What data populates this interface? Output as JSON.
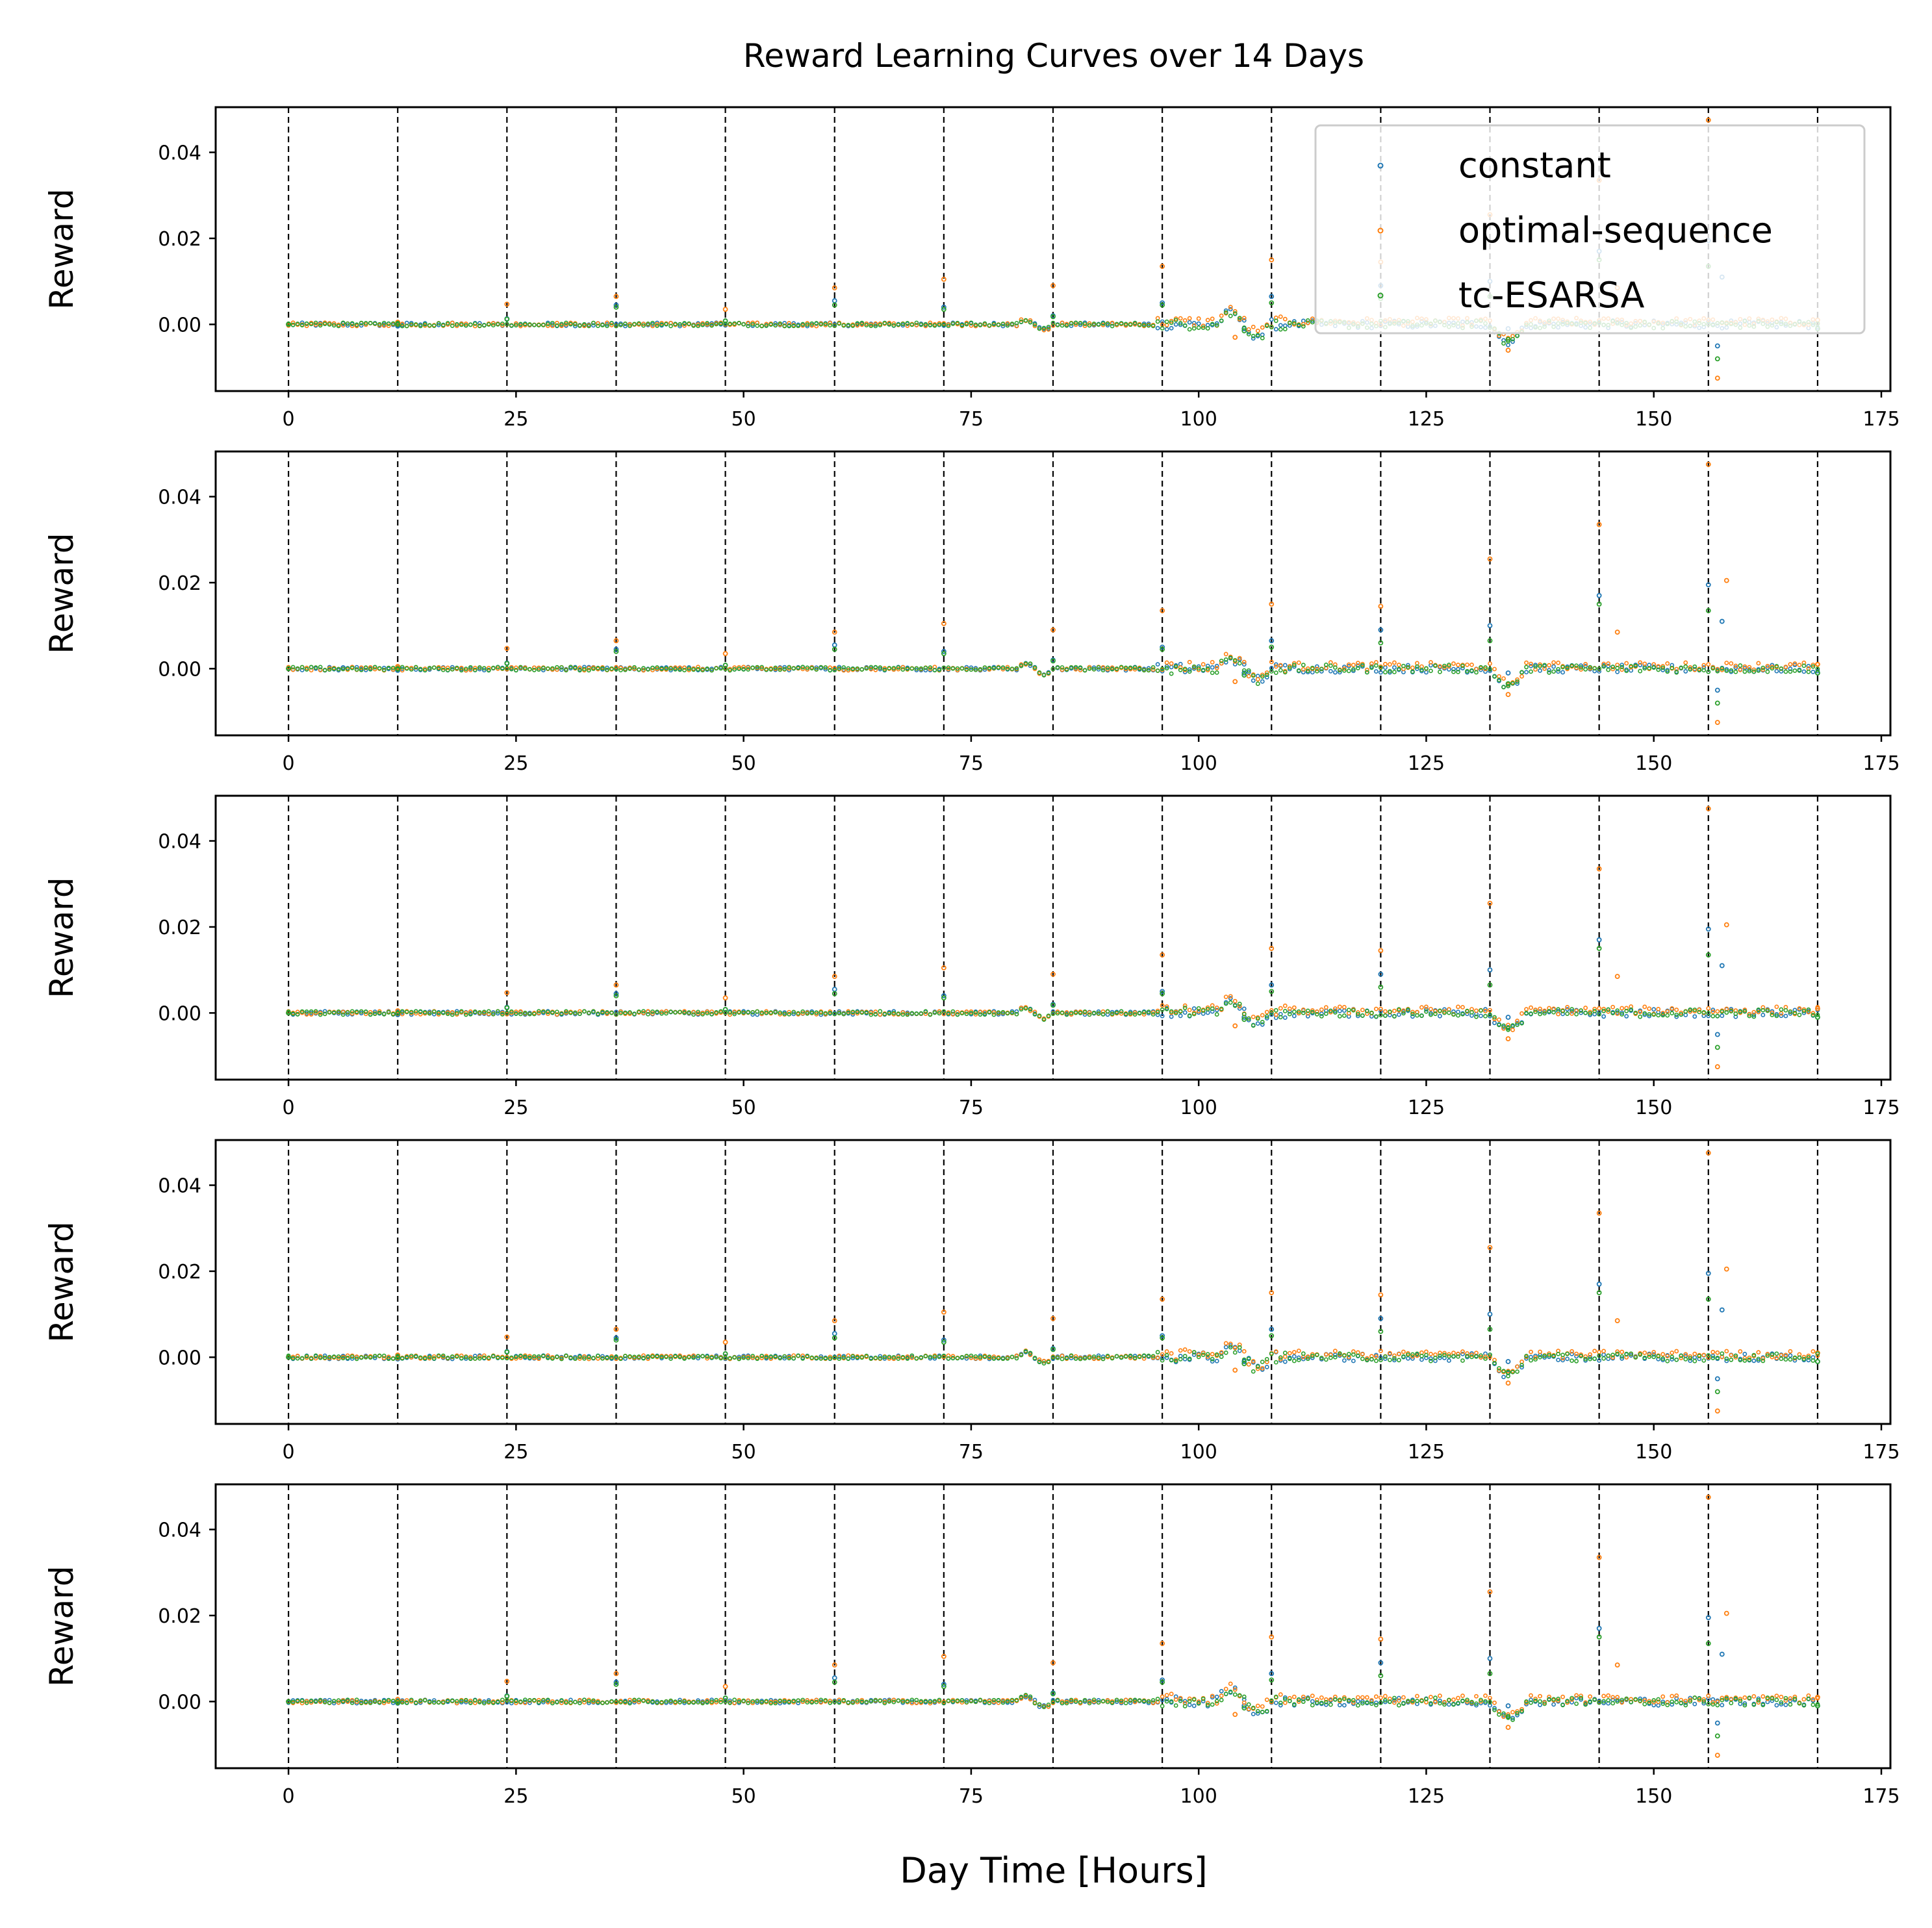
{
  "figure": {
    "title": "Reward Learning Curves over 14 Days"
  },
  "chart_data": {
    "type": "scatter",
    "title": "Reward Learning Curves over 14 Days",
    "xlabel": "Day Time [Hours]",
    "ylabel": "Reward",
    "xlim": [
      -8,
      176
    ],
    "ylim": [
      -0.0155,
      0.0505
    ],
    "xticks": [
      0,
      25,
      50,
      75,
      100,
      125,
      150,
      175
    ],
    "xtick_labels": [
      "0",
      "25",
      "50",
      "75",
      "100",
      "125",
      "150",
      "175"
    ],
    "yticks": [
      0.0,
      0.02,
      0.04
    ],
    "ytick_labels": [
      "0.00",
      "0.02",
      "0.04"
    ],
    "vlines": [
      0,
      12,
      24,
      36,
      48,
      60,
      72,
      84,
      96,
      108,
      120,
      132,
      144,
      156,
      168
    ],
    "vline_style": "dashed black",
    "grid": false,
    "legend": {
      "location": "upper right",
      "entries": [
        "constant",
        "optimal-sequence",
        "tc-ESARSA"
      ]
    },
    "panels": 5,
    "series": [
      {
        "name": "constant",
        "color": "#1f77b4",
        "points": [
          [
            0,
            0
          ],
          [
            6,
            0.0002
          ],
          [
            12,
            -0.0004
          ],
          [
            24,
            0.0013
          ],
          [
            36,
            0.0045
          ],
          [
            48,
            0.0008
          ],
          [
            60,
            0.0055
          ],
          [
            72,
            0.004
          ],
          [
            84,
            0.002
          ],
          [
            96,
            0.005
          ],
          [
            105,
            -0.001
          ],
          [
            108,
            0.0065
          ],
          [
            120,
            0.009
          ],
          [
            132,
            0.01
          ],
          [
            134,
            -0.001
          ],
          [
            144,
            0.017
          ],
          [
            156,
            0.0195
          ],
          [
            157,
            -0.005
          ],
          [
            157.5,
            0.011
          ],
          [
            168,
            -0.001
          ]
        ]
      },
      {
        "name": "optimal-sequence",
        "color": "#ff7f0e",
        "points": [
          [
            0,
            0
          ],
          [
            12,
            0.0005
          ],
          [
            24,
            0.0047
          ],
          [
            36,
            0.0065
          ],
          [
            48,
            0.0035
          ],
          [
            60,
            0.0085
          ],
          [
            72,
            0.0105
          ],
          [
            84,
            0.009
          ],
          [
            96,
            0.0135
          ],
          [
            104,
            -0.003
          ],
          [
            108,
            0.015
          ],
          [
            120,
            0.0145
          ],
          [
            132,
            0.0255
          ],
          [
            134,
            -0.006
          ],
          [
            144,
            0.0335
          ],
          [
            146,
            0.0085
          ],
          [
            156,
            0.0475
          ],
          [
            157,
            -0.0125
          ],
          [
            158,
            0.0205
          ],
          [
            168,
            0.001
          ]
        ]
      },
      {
        "name": "tc-ESARSA",
        "color": "#2ca02c",
        "points": [
          [
            0,
            0
          ],
          [
            12,
            0
          ],
          [
            24,
            0.0012
          ],
          [
            36,
            0.004
          ],
          [
            48,
            0.0008
          ],
          [
            60,
            0.0045
          ],
          [
            72,
            0.0035
          ],
          [
            84,
            0.0018
          ],
          [
            96,
            0.0045
          ],
          [
            105,
            -0.0015
          ],
          [
            108,
            0.005
          ],
          [
            120,
            0.006
          ],
          [
            132,
            0.0065
          ],
          [
            134,
            -0.0035
          ],
          [
            144,
            0.015
          ],
          [
            156,
            0.0135
          ],
          [
            157,
            -0.008
          ],
          [
            168,
            -0.001
          ]
        ]
      }
    ]
  }
}
